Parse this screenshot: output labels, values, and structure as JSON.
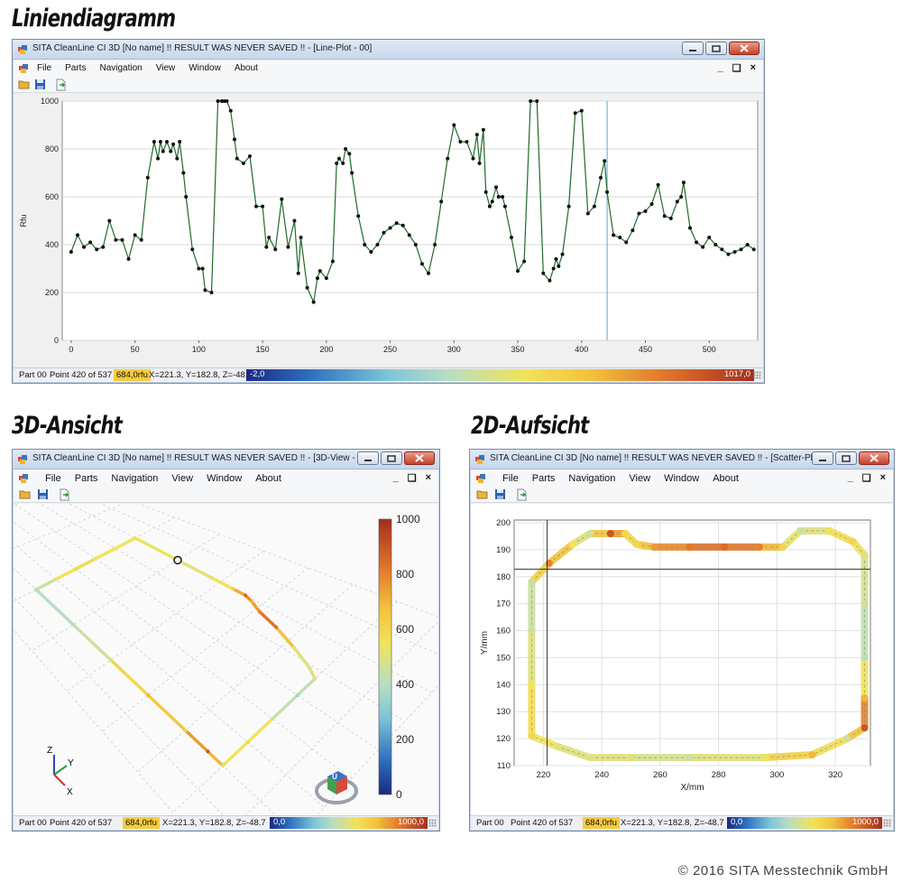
{
  "headings": {
    "line": "Liniendiagramm",
    "view3d": "3D-Ansicht",
    "view2d": "2D-Aufsicht"
  },
  "windows": {
    "line": {
      "title": "SITA CleanLine CI 3D [No name] !! RESULT WAS NEVER SAVED !! - [Line-Plot - 00]"
    },
    "view3d": {
      "title": "SITA CleanLine CI 3D [No name] !! RESULT WAS NEVER SAVED !! - [3D-View - ..."
    },
    "view2d": {
      "title": "SITA CleanLine CI 3D [No name] !! RESULT WAS NEVER SAVED !! - [Scatter-Pl..."
    }
  },
  "menu": {
    "file": "File",
    "parts": "Parts",
    "navigation": "Navigation",
    "view": "View",
    "window": "Window",
    "about": "About"
  },
  "mdi": {
    "minimize": "_",
    "restore": "❏",
    "close": "×"
  },
  "status": {
    "part": "Part 00",
    "point": "Point 420 of 537",
    "value": "684,0rfu",
    "coords": "X=221.3, Y=182.8, Z=-48.7"
  },
  "scales": {
    "line": {
      "min": "-2,0",
      "max": "1017,0"
    },
    "view3d": {
      "min": "0,0",
      "max": "1000,0"
    },
    "view2d": {
      "min": "0,0",
      "max": "1000,0"
    }
  },
  "axis_cube": {
    "face": "U",
    "x": "X",
    "y": "Y",
    "z": "Z"
  },
  "copyright": "© 2016 SITA Messtechnik GmbH",
  "colors": {
    "trace_line": "#1f6b2a",
    "marker": "#111111",
    "cursor": "#5fa8c8",
    "accent": "#f6cb3c"
  },
  "chart_data": [
    {
      "type": "line",
      "title": "",
      "xlabel": "",
      "ylabel": "Rfu",
      "xlim": [
        -7,
        538
      ],
      "ylim": [
        0,
        1000
      ],
      "xticks": [
        0,
        50,
        100,
        150,
        200,
        250,
        300,
        350,
        400,
        450,
        500
      ],
      "yticks": [
        0,
        200,
        400,
        600,
        800,
        1000
      ],
      "grid": true,
      "cursor_x": 420,
      "x": [
        0,
        5,
        10,
        15,
        20,
        25,
        30,
        35,
        40,
        45,
        50,
        55,
        60,
        65,
        68,
        70,
        72,
        75,
        78,
        80,
        83,
        85,
        88,
        90,
        95,
        100,
        103,
        105,
        110,
        115,
        118,
        120,
        122,
        125,
        128,
        130,
        135,
        140,
        145,
        150,
        153,
        155,
        160,
        165,
        170,
        175,
        178,
        180,
        185,
        190,
        193,
        195,
        200,
        205,
        208,
        210,
        213,
        215,
        218,
        220,
        225,
        230,
        235,
        240,
        245,
        250,
        255,
        260,
        265,
        270,
        275,
        280,
        285,
        290,
        295,
        300,
        305,
        310,
        315,
        318,
        320,
        323,
        325,
        328,
        330,
        333,
        335,
        338,
        340,
        345,
        350,
        355,
        360,
        365,
        370,
        375,
        378,
        380,
        382,
        385,
        390,
        395,
        400,
        405,
        410,
        415,
        418,
        420,
        425,
        430,
        435,
        440,
        445,
        450,
        455,
        460,
        465,
        470,
        475,
        478,
        480,
        485,
        490,
        495,
        500,
        505,
        510,
        515,
        520,
        525,
        530,
        535
      ],
      "y": [
        370,
        440,
        390,
        410,
        380,
        390,
        500,
        420,
        420,
        340,
        440,
        420,
        680,
        830,
        760,
        830,
        790,
        830,
        790,
        820,
        760,
        830,
        700,
        600,
        380,
        300,
        300,
        210,
        200,
        1000,
        1000,
        1000,
        1000,
        960,
        840,
        760,
        740,
        770,
        560,
        560,
        390,
        430,
        380,
        590,
        390,
        500,
        280,
        430,
        220,
        160,
        260,
        290,
        260,
        330,
        740,
        760,
        740,
        800,
        780,
        700,
        520,
        400,
        370,
        400,
        450,
        470,
        490,
        480,
        440,
        400,
        320,
        280,
        400,
        580,
        760,
        900,
        830,
        830,
        760,
        860,
        740,
        880,
        620,
        560,
        580,
        640,
        600,
        600,
        560,
        430,
        290,
        330,
        1000,
        1000,
        280,
        250,
        300,
        340,
        310,
        360,
        560,
        950,
        960,
        530,
        560,
        680,
        750,
        620,
        440,
        430,
        410,
        460,
        530,
        540,
        570,
        650,
        520,
        510,
        580,
        600,
        660,
        470,
        410,
        390,
        430,
        400,
        380,
        360,
        370,
        380,
        400,
        380
      ],
      "marker_every": 1
    },
    {
      "type": "scatter",
      "title": "",
      "xlabel": "X/mm",
      "ylabel": "Y/mm",
      "xlim": [
        210,
        332
      ],
      "ylim": [
        110,
        201
      ],
      "xticks": [
        220,
        240,
        260,
        280,
        300,
        320
      ],
      "yticks": [
        110,
        120,
        130,
        140,
        150,
        160,
        170,
        180,
        190,
        200
      ],
      "grid": true,
      "crosshair": {
        "x": 221.3,
        "y": 182.8
      },
      "colorscale": [
        0,
        1000
      ],
      "path": [
        {
          "x": 216,
          "y": 178,
          "v": 450
        },
        {
          "x": 222,
          "y": 185,
          "v": 800
        },
        {
          "x": 230,
          "y": 192,
          "v": 550
        },
        {
          "x": 236,
          "y": 196,
          "v": 450
        },
        {
          "x": 243,
          "y": 196,
          "v": 900
        },
        {
          "x": 248,
          "y": 196,
          "v": 600
        },
        {
          "x": 252,
          "y": 192,
          "v": 600
        },
        {
          "x": 258,
          "y": 191,
          "v": 750
        },
        {
          "x": 270,
          "y": 191,
          "v": 820
        },
        {
          "x": 282,
          "y": 191,
          "v": 850
        },
        {
          "x": 294,
          "y": 191,
          "v": 800
        },
        {
          "x": 302,
          "y": 191,
          "v": 600
        },
        {
          "x": 308,
          "y": 197,
          "v": 450
        },
        {
          "x": 318,
          "y": 197,
          "v": 550
        },
        {
          "x": 326,
          "y": 193,
          "v": 600
        },
        {
          "x": 330,
          "y": 188,
          "v": 500
        },
        {
          "x": 330,
          "y": 170,
          "v": 450
        },
        {
          "x": 330,
          "y": 150,
          "v": 400
        },
        {
          "x": 330,
          "y": 135,
          "v": 700
        },
        {
          "x": 330,
          "y": 124,
          "v": 900
        },
        {
          "x": 324,
          "y": 120,
          "v": 450
        },
        {
          "x": 312,
          "y": 114,
          "v": 700
        },
        {
          "x": 296,
          "y": 113,
          "v": 550
        },
        {
          "x": 270,
          "y": 113,
          "v": 450
        },
        {
          "x": 250,
          "y": 113,
          "v": 500
        },
        {
          "x": 236,
          "y": 113,
          "v": 500
        },
        {
          "x": 225,
          "y": 117,
          "v": 500
        },
        {
          "x": 216,
          "y": 121,
          "v": 600
        },
        {
          "x": 216,
          "y": 140,
          "v": 550
        },
        {
          "x": 216,
          "y": 160,
          "v": 450
        },
        {
          "x": 216,
          "y": 178,
          "v": 450
        }
      ]
    },
    {
      "type": "scatter",
      "title": "",
      "xlabel": "",
      "ylabel": "",
      "colorbar_ticks": [
        0,
        200,
        400,
        600,
        800,
        1000
      ],
      "colorscale": [
        0,
        1000
      ],
      "projection": "3d",
      "path": [
        {
          "x": 0,
          "y": 0,
          "v": 550
        },
        {
          "x": 20,
          "y": 0,
          "v": 520
        },
        {
          "x": 36,
          "y": 0,
          "v": 500
        },
        {
          "x": 46,
          "y": 0,
          "v": 600
        },
        {
          "x": 52,
          "y": 0,
          "v": 850
        },
        {
          "x": 56,
          "y": 2,
          "v": 700
        },
        {
          "x": 62,
          "y": 6,
          "v": 800
        },
        {
          "x": 72,
          "y": 10,
          "v": 850
        },
        {
          "x": 84,
          "y": 16,
          "v": 500
        },
        {
          "x": 95,
          "y": 22,
          "v": 500
        },
        {
          "x": 100,
          "y": 26,
          "v": 500
        },
        {
          "x": 100,
          "y": 40,
          "v": 350
        },
        {
          "x": 100,
          "y": 60,
          "v": 500
        },
        {
          "x": 100,
          "y": 80,
          "v": 600
        },
        {
          "x": 100,
          "y": 100,
          "v": 500
        },
        {
          "x": 92,
          "y": 100,
          "v": 900
        },
        {
          "x": 80,
          "y": 100,
          "v": 600
        },
        {
          "x": 60,
          "y": 100,
          "v": 700
        },
        {
          "x": 40,
          "y": 100,
          "v": 500
        },
        {
          "x": 20,
          "y": 100,
          "v": 400
        },
        {
          "x": 0,
          "y": 100,
          "v": 400
        },
        {
          "x": 0,
          "y": 80,
          "v": 500
        },
        {
          "x": 0,
          "y": 60,
          "v": 600
        },
        {
          "x": 0,
          "y": 40,
          "v": 550
        },
        {
          "x": 0,
          "y": 20,
          "v": 550
        },
        {
          "x": 0,
          "y": 0,
          "v": 550
        }
      ]
    }
  ]
}
